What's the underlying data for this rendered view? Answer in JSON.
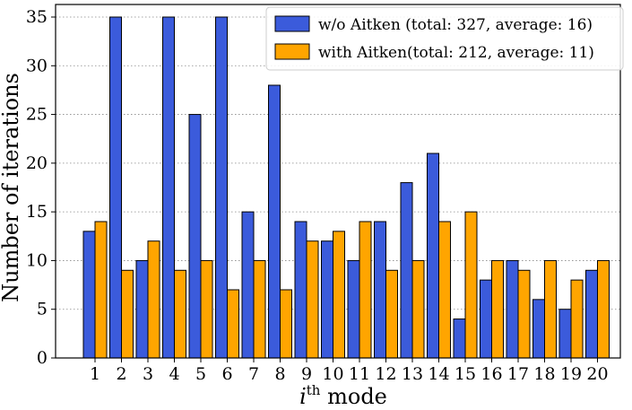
{
  "chart_data": {
    "type": "bar",
    "categories": [
      "1",
      "2",
      "3",
      "4",
      "5",
      "6",
      "7",
      "8",
      "9",
      "10",
      "11",
      "12",
      "13",
      "14",
      "15",
      "16",
      "17",
      "18",
      "19",
      "20"
    ],
    "series": [
      {
        "name": "w/o Aitken (total: 327, average: 16)",
        "color": "#3b5bdb",
        "values": [
          13,
          35,
          10,
          35,
          25,
          35,
          15,
          28,
          14,
          12,
          10,
          14,
          18,
          21,
          4,
          8,
          10,
          6,
          5,
          9
        ]
      },
      {
        "name": "with Aitken(total: 212, average: 11)",
        "color": "#ffa500",
        "values": [
          14,
          9,
          12,
          9,
          10,
          7,
          10,
          7,
          12,
          13,
          14,
          9,
          10,
          14,
          15,
          10,
          9,
          10,
          8,
          10
        ]
      }
    ],
    "title": "",
    "xlabel_main": "i",
    "xlabel_sup": "th",
    "xlabel_rest": " mode",
    "ylabel": "Number of iterations",
    "yticks": [
      0,
      5,
      10,
      15,
      20,
      25,
      30,
      35
    ],
    "ylim": [
      0,
      35
    ],
    "grid": "horizontal dotted",
    "legend_position": "top-right"
  }
}
